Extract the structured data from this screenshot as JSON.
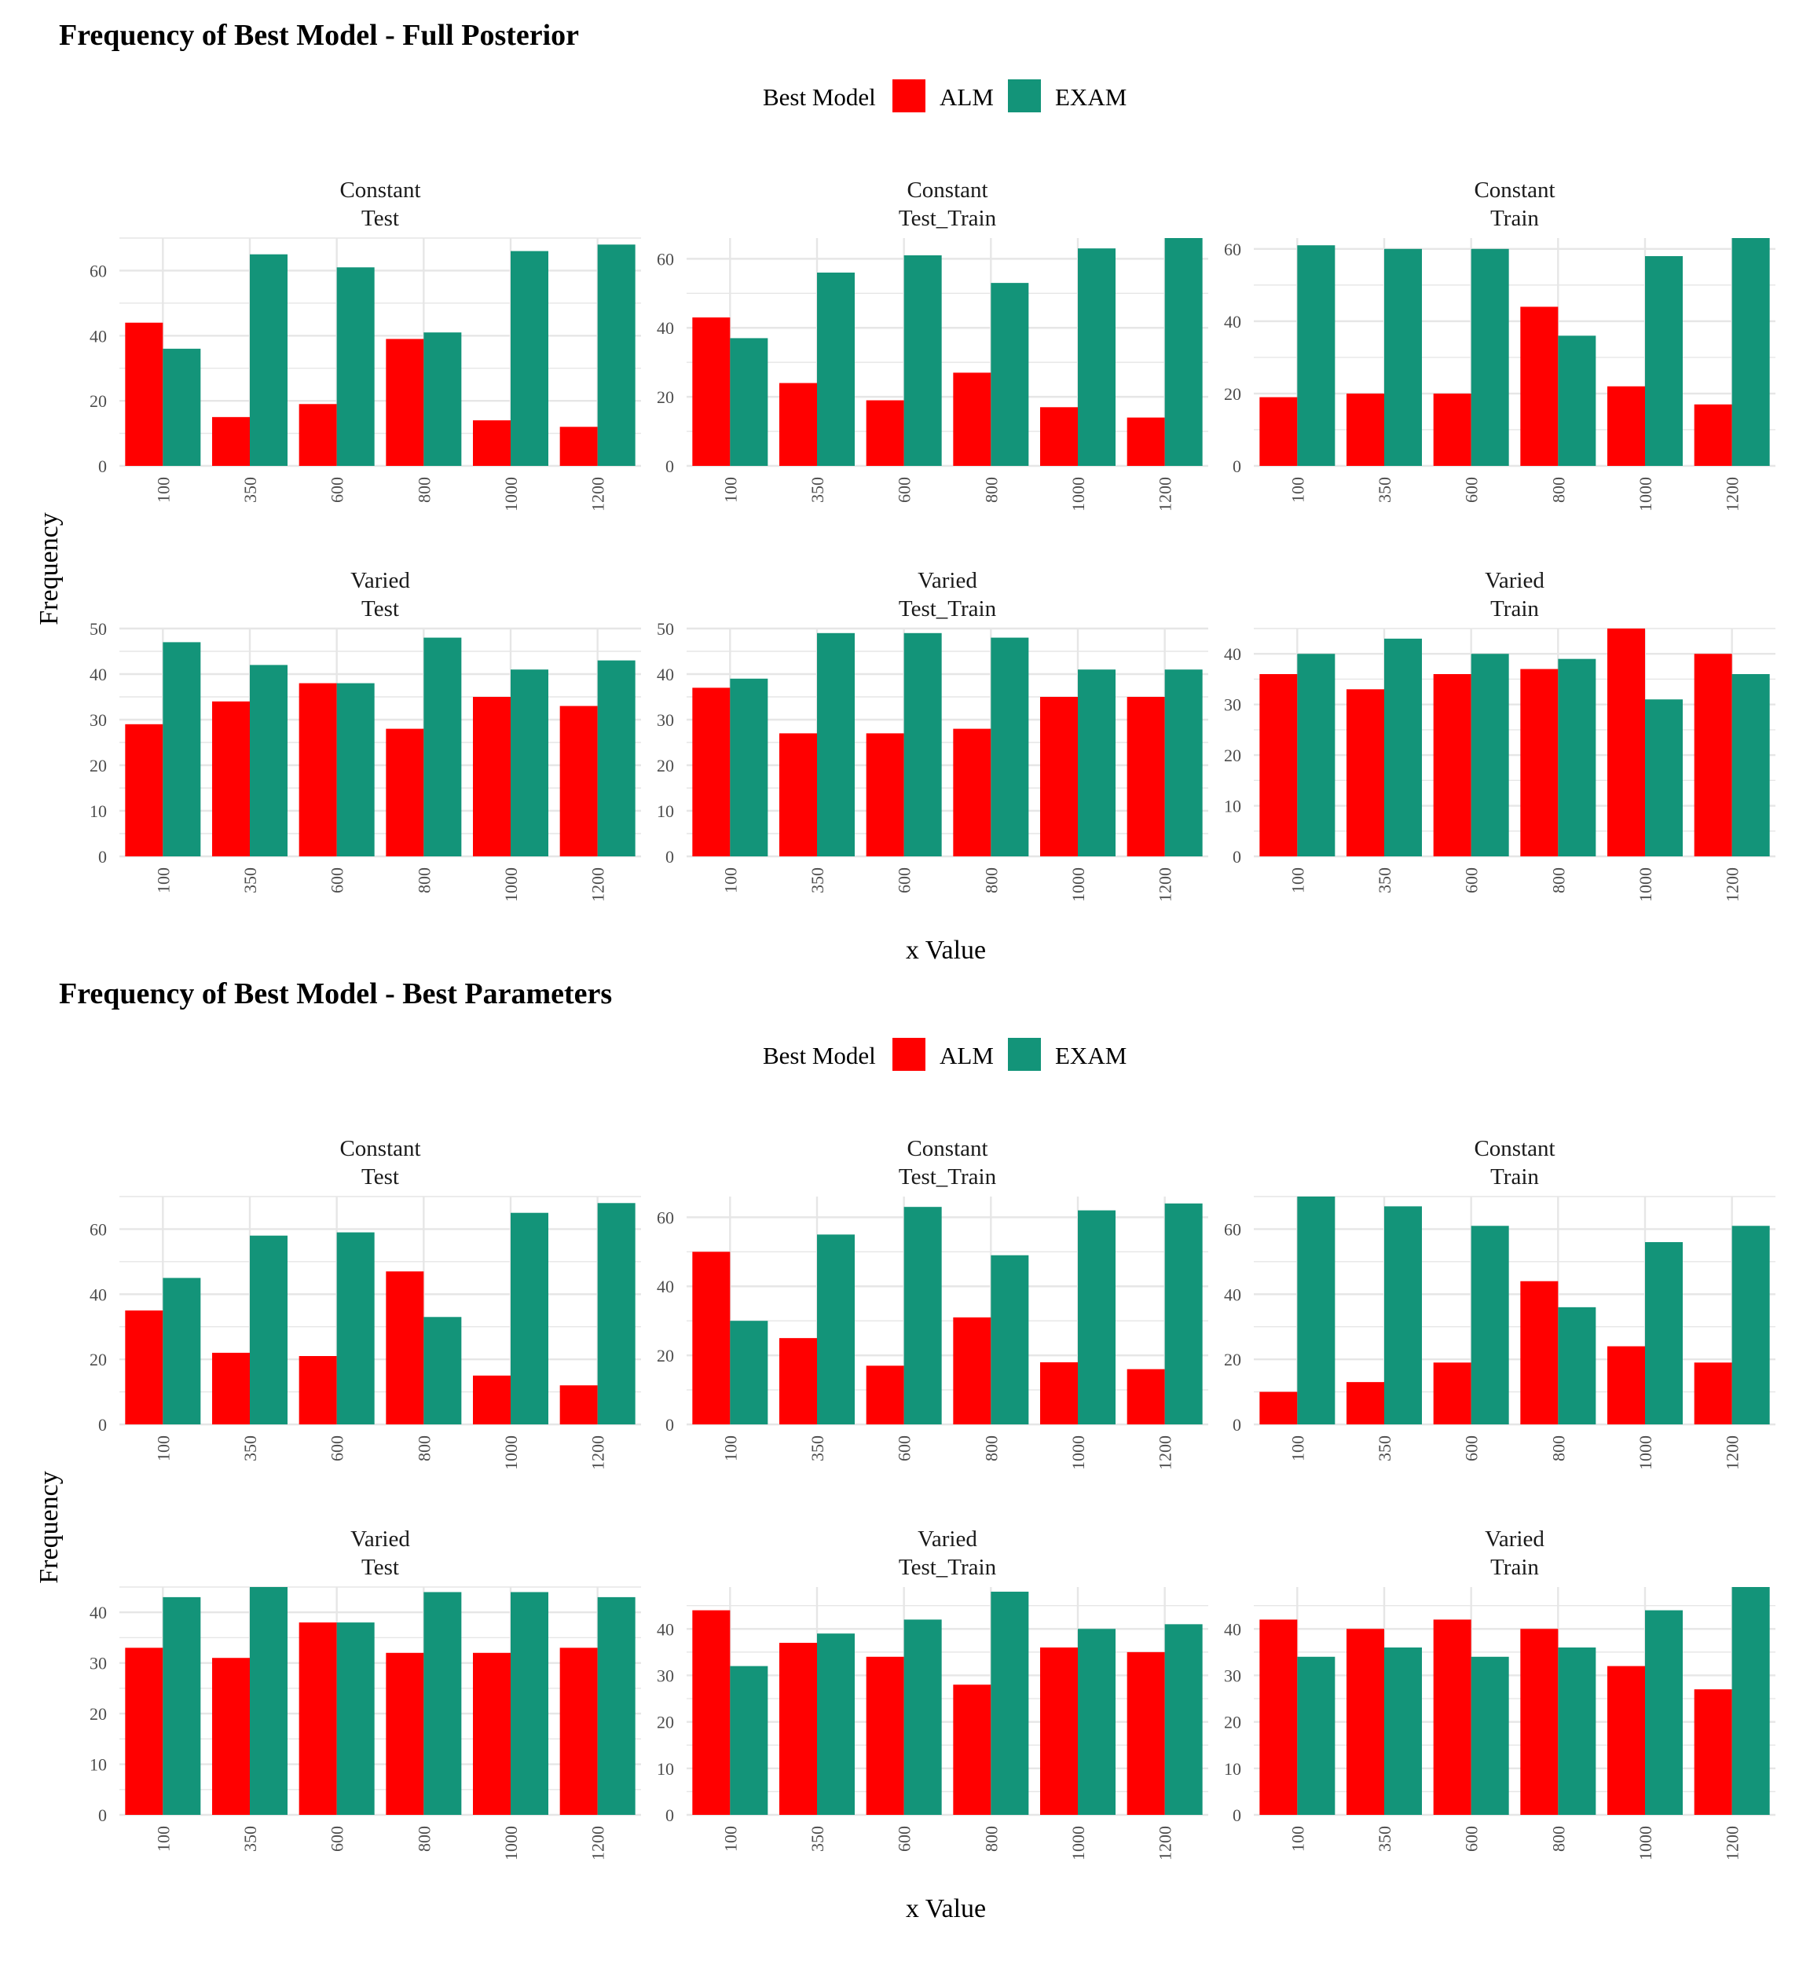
{
  "figures": [
    {
      "title": "Frequency of Best Model - Full Posterior",
      "legend_title": "Best Model",
      "xlabel": "x Value",
      "ylabel": "Frequency"
    },
    {
      "title": "Frequency of Best Model - Best Parameters",
      "legend_title": "Best Model",
      "xlabel": "x Value",
      "ylabel": "Frequency"
    }
  ],
  "colors": {
    "ALM": "#ff0000",
    "EXAM": "#139479",
    "grid": "#e6e6e6"
  },
  "chart_data": [
    {
      "type": "bar",
      "title": "Frequency of Best Model - Full Posterior",
      "xlabel": "x Value",
      "ylabel": "Frequency",
      "legend": {
        "title": "Best Model",
        "entries": [
          "ALM",
          "EXAM"
        ],
        "placement": "top"
      },
      "categories": [
        "100",
        "350",
        "600",
        "800",
        "1000",
        "1200"
      ],
      "panels": [
        {
          "row": "Constant",
          "col": "Test",
          "ylim": [
            0,
            70
          ],
          "yticks": [
            0,
            20,
            40,
            60
          ],
          "series": [
            {
              "name": "ALM",
              "values": [
                44,
                15,
                19,
                39,
                14,
                12
              ]
            },
            {
              "name": "EXAM",
              "values": [
                36,
                65,
                61,
                41,
                66,
                68
              ]
            }
          ]
        },
        {
          "row": "Constant",
          "col": "Test_Train",
          "ylim": [
            0,
            66
          ],
          "yticks": [
            0,
            20,
            40,
            60
          ],
          "series": [
            {
              "name": "ALM",
              "values": [
                43,
                24,
                19,
                27,
                17,
                14
              ]
            },
            {
              "name": "EXAM",
              "values": [
                37,
                56,
                61,
                53,
                63,
                66
              ]
            }
          ]
        },
        {
          "row": "Constant",
          "col": "Train",
          "ylim": [
            0,
            63
          ],
          "yticks": [
            0,
            20,
            40,
            60
          ],
          "series": [
            {
              "name": "ALM",
              "values": [
                19,
                20,
                20,
                44,
                22,
                17
              ]
            },
            {
              "name": "EXAM",
              "values": [
                61,
                60,
                60,
                36,
                58,
                63
              ]
            }
          ]
        },
        {
          "row": "Varied",
          "col": "Test",
          "ylim": [
            0,
            50
          ],
          "yticks": [
            0,
            10,
            20,
            30,
            40,
            50
          ],
          "series": [
            {
              "name": "ALM",
              "values": [
                29,
                34,
                38,
                28,
                35,
                33
              ]
            },
            {
              "name": "EXAM",
              "values": [
                47,
                42,
                38,
                48,
                41,
                43
              ]
            }
          ]
        },
        {
          "row": "Varied",
          "col": "Test_Train",
          "ylim": [
            0,
            50
          ],
          "yticks": [
            0,
            10,
            20,
            30,
            40,
            50
          ],
          "series": [
            {
              "name": "ALM",
              "values": [
                37,
                27,
                27,
                28,
                35,
                35
              ]
            },
            {
              "name": "EXAM",
              "values": [
                39,
                49,
                49,
                48,
                41,
                41
              ]
            }
          ]
        },
        {
          "row": "Varied",
          "col": "Train",
          "ylim": [
            0,
            45
          ],
          "yticks": [
            0,
            10,
            20,
            30,
            40
          ],
          "series": [
            {
              "name": "ALM",
              "values": [
                36,
                33,
                36,
                37,
                45,
                40
              ]
            },
            {
              "name": "EXAM",
              "values": [
                40,
                43,
                40,
                39,
                31,
                36
              ]
            }
          ]
        }
      ]
    },
    {
      "type": "bar",
      "title": "Frequency of Best Model - Best Parameters",
      "xlabel": "x Value",
      "ylabel": "Frequency",
      "legend": {
        "title": "Best Model",
        "entries": [
          "ALM",
          "EXAM"
        ],
        "placement": "top"
      },
      "categories": [
        "100",
        "350",
        "600",
        "800",
        "1000",
        "1200"
      ],
      "panels": [
        {
          "row": "Constant",
          "col": "Test",
          "ylim": [
            0,
            70
          ],
          "yticks": [
            0,
            20,
            40,
            60
          ],
          "series": [
            {
              "name": "ALM",
              "values": [
                35,
                22,
                21,
                47,
                15,
                12
              ]
            },
            {
              "name": "EXAM",
              "values": [
                45,
                58,
                59,
                33,
                65,
                68
              ]
            }
          ]
        },
        {
          "row": "Constant",
          "col": "Test_Train",
          "ylim": [
            0,
            66
          ],
          "yticks": [
            0,
            20,
            40,
            60
          ],
          "series": [
            {
              "name": "ALM",
              "values": [
                50,
                25,
                17,
                31,
                18,
                16
              ]
            },
            {
              "name": "EXAM",
              "values": [
                30,
                55,
                63,
                49,
                62,
                64
              ]
            }
          ]
        },
        {
          "row": "Constant",
          "col": "Train",
          "ylim": [
            0,
            70
          ],
          "yticks": [
            0,
            20,
            40,
            60
          ],
          "series": [
            {
              "name": "ALM",
              "values": [
                10,
                13,
                19,
                44,
                24,
                19
              ]
            },
            {
              "name": "EXAM",
              "values": [
                70,
                67,
                61,
                36,
                56,
                61
              ]
            }
          ]
        },
        {
          "row": "Varied",
          "col": "Test",
          "ylim": [
            0,
            45
          ],
          "yticks": [
            0,
            10,
            20,
            30,
            40
          ],
          "series": [
            {
              "name": "ALM",
              "values": [
                33,
                31,
                38,
                32,
                32,
                33
              ]
            },
            {
              "name": "EXAM",
              "values": [
                43,
                45,
                38,
                44,
                44,
                43
              ]
            }
          ]
        },
        {
          "row": "Varied",
          "col": "Test_Train",
          "ylim": [
            0,
            49
          ],
          "yticks": [
            0,
            10,
            20,
            30,
            40,
            50
          ],
          "series": [
            {
              "name": "ALM",
              "values": [
                44,
                37,
                34,
                28,
                36,
                35
              ]
            },
            {
              "name": "EXAM",
              "values": [
                32,
                39,
                42,
                48,
                40,
                41
              ]
            }
          ]
        },
        {
          "row": "Varied",
          "col": "Train",
          "ylim": [
            0,
            49
          ],
          "yticks": [
            0,
            10,
            20,
            30,
            40,
            50
          ],
          "series": [
            {
              "name": "ALM",
              "values": [
                42,
                40,
                42,
                40,
                32,
                27
              ]
            },
            {
              "name": "EXAM",
              "values": [
                34,
                36,
                34,
                36,
                44,
                49
              ]
            }
          ]
        }
      ]
    }
  ]
}
